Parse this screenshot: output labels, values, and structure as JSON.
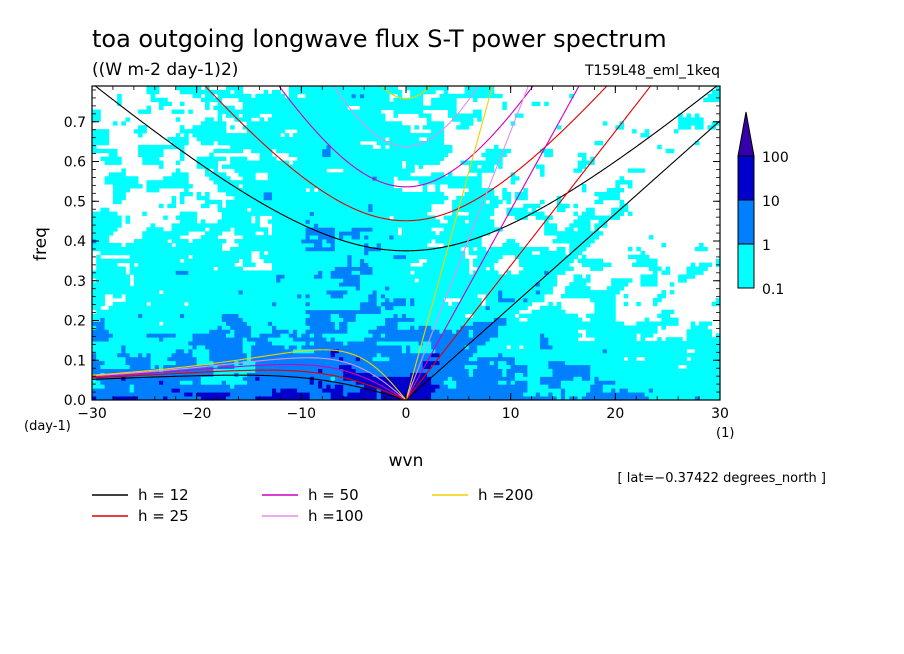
{
  "chart_data": {
    "type": "heatmap",
    "title": "toa outgoing longwave flux S-T power spectrum",
    "subtitle": "((W m-2 day-1)2)",
    "run_label": "T159L48_eml_1keq",
    "xlabel": "wvn",
    "ylabel": "freq",
    "x_unit": "(1)",
    "y_unit": "(day-1)",
    "xlim": [
      -30,
      30
    ],
    "ylim": [
      0,
      0.79
    ],
    "x_ticks": [
      "−30",
      "−20",
      "−10",
      "0",
      "10",
      "20",
      "30"
    ],
    "y_ticks": [
      "0.0",
      "0.1",
      "0.2",
      "0.3",
      "0.4",
      "0.5",
      "0.6",
      "0.7"
    ],
    "footnote": "[ lat=−0.37422 degrees_north ]",
    "colorbar": {
      "levels": [
        "0.1",
        "1",
        "10",
        "100"
      ],
      "colors": [
        "#00ffff",
        "#0080ff",
        "#0000cc",
        "#3300aa"
      ]
    },
    "dispersion_curves": [
      {
        "name": "h = 12",
        "value": 12,
        "color": "#000000"
      },
      {
        "name": "h = 25",
        "value": 25,
        "color": "#e00000"
      },
      {
        "name": "h = 50",
        "value": 50,
        "color": "#d000c0"
      },
      {
        "name": "h =100",
        "value": 100,
        "color": "#e090e8"
      },
      {
        "name": "h =200",
        "value": 200,
        "color": "#f0d000"
      }
    ]
  }
}
